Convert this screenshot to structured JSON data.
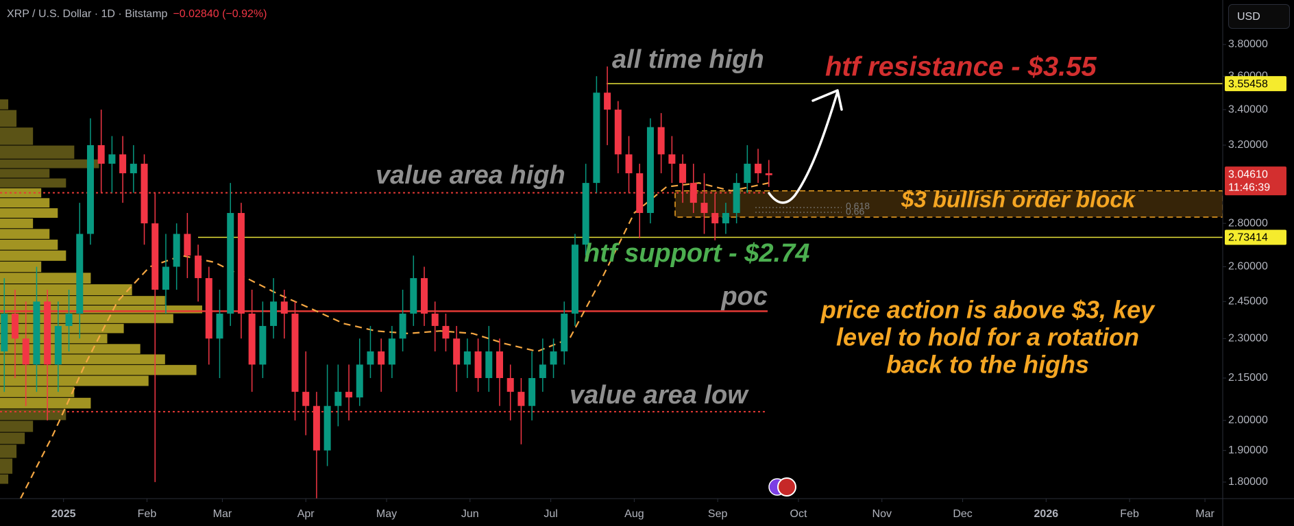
{
  "header": {
    "symbol": "XRP / U.S. Dollar · 1D · Bitstamp",
    "change": "−0.02840 (−0.92%)",
    "currency": "USD"
  },
  "chart_data": {
    "type": "candlestick",
    "log_scale": true,
    "grid": false,
    "xlim": [
      -23.6,
      430.6
    ],
    "ylim": [
      1.75,
      4.1
    ],
    "xticks": [
      {
        "value": 0,
        "label": "2025"
      },
      {
        "value": 31,
        "label": "Feb"
      },
      {
        "value": 59,
        "label": "Mar"
      },
      {
        "value": 90,
        "label": "Apr"
      },
      {
        "value": 120,
        "label": "May"
      },
      {
        "value": 151,
        "label": "Jun"
      },
      {
        "value": 181,
        "label": "Jul"
      },
      {
        "value": 212,
        "label": "Aug"
      },
      {
        "value": 243,
        "label": "Sep"
      },
      {
        "value": 273,
        "label": "Oct"
      },
      {
        "value": 304,
        "label": "Nov"
      },
      {
        "value": 334,
        "label": "Dec"
      },
      {
        "value": 365,
        "label": "2026"
      },
      {
        "value": 396,
        "label": "Feb"
      },
      {
        "value": 424,
        "label": "Mar"
      }
    ],
    "yticks": [
      {
        "value": 3.8,
        "label": "3.80000"
      },
      {
        "value": 3.6,
        "label": "3.60000"
      },
      {
        "value": 3.4,
        "label": "3.40000"
      },
      {
        "value": 3.2,
        "label": "3.20000"
      },
      {
        "value": 2.8,
        "label": "2.80000"
      },
      {
        "value": 2.6,
        "label": "2.60000"
      },
      {
        "value": 2.45,
        "label": "2.45000"
      },
      {
        "value": 2.3,
        "label": "2.30000"
      },
      {
        "value": 2.15,
        "label": "2.15000"
      },
      {
        "value": 2.0,
        "label": "2.00000"
      },
      {
        "value": 1.9,
        "label": "1.90000"
      },
      {
        "value": 1.8,
        "label": "1.80000"
      }
    ],
    "up_color": "#089981",
    "down_color": "#f23645",
    "x": [
      -22,
      -18,
      -14,
      -10,
      -6,
      -2,
      2,
      6,
      10,
      14,
      18,
      22,
      26,
      30,
      34,
      38,
      42,
      46,
      50,
      54,
      58,
      62,
      66,
      70,
      74,
      78,
      82,
      86,
      90,
      94,
      98,
      102,
      106,
      110,
      114,
      118,
      122,
      126,
      130,
      134,
      138,
      142,
      146,
      150,
      154,
      158,
      162,
      166,
      170,
      174,
      178,
      182,
      186,
      190,
      194,
      198,
      202,
      206,
      210,
      214,
      218,
      222,
      226,
      230,
      234,
      238,
      242,
      246,
      250,
      254,
      258,
      262
    ],
    "open": [
      2.25,
      2.4,
      2.3,
      2.2,
      2.45,
      2.2,
      2.35,
      2.4,
      2.75,
      3.2,
      3.1,
      3.15,
      3.05,
      3.1,
      2.8,
      2.5,
      2.6,
      2.75,
      2.65,
      2.55,
      2.3,
      2.4,
      2.85,
      2.4,
      2.2,
      2.35,
      2.45,
      2.4,
      2.1,
      2.05,
      1.9,
      2.05,
      2.1,
      2.08,
      2.2,
      2.25,
      2.2,
      2.3,
      2.4,
      2.55,
      2.4,
      2.35,
      2.3,
      2.2,
      2.25,
      2.15,
      2.25,
      2.15,
      2.1,
      2.05,
      2.15,
      2.2,
      2.25,
      2.4,
      2.7,
      3.0,
      3.5,
      3.4,
      3.15,
      3.05,
      2.85,
      3.3,
      3.15,
      3.1,
      3.0,
      2.9,
      2.85,
      2.8,
      2.85,
      3.0,
      3.1,
      3.05
    ],
    "high": [
      2.55,
      2.5,
      2.45,
      2.6,
      2.5,
      2.45,
      2.5,
      2.9,
      3.35,
      3.4,
      3.25,
      3.25,
      3.2,
      3.15,
      2.95,
      2.75,
      2.8,
      2.85,
      2.7,
      2.6,
      2.5,
      3.0,
      2.9,
      2.5,
      2.45,
      2.55,
      2.5,
      2.45,
      2.25,
      2.1,
      2.2,
      2.2,
      2.2,
      2.3,
      2.35,
      2.3,
      2.35,
      2.5,
      2.65,
      2.6,
      2.45,
      2.4,
      2.35,
      2.3,
      2.3,
      2.35,
      2.3,
      2.2,
      2.15,
      2.25,
      2.3,
      2.3,
      2.45,
      2.75,
      3.1,
      3.6,
      3.66,
      3.45,
      3.25,
      3.1,
      3.35,
      3.38,
      3.25,
      3.15,
      3.1,
      3.05,
      2.95,
      2.9,
      3.05,
      3.2,
      3.18,
      3.12
    ],
    "low": [
      2.1,
      2.15,
      2.05,
      2.1,
      2.0,
      2.1,
      2.25,
      2.3,
      2.7,
      2.95,
      2.95,
      2.9,
      2.95,
      2.7,
      1.8,
      2.4,
      2.5,
      2.55,
      2.45,
      2.2,
      2.15,
      2.35,
      2.3,
      2.1,
      2.15,
      2.3,
      2.3,
      2.0,
      1.95,
      1.75,
      1.85,
      1.98,
      2.0,
      2.05,
      2.15,
      2.1,
      2.15,
      2.25,
      2.35,
      2.35,
      2.25,
      2.25,
      2.1,
      2.15,
      2.1,
      2.1,
      2.05,
      2.0,
      1.92,
      2.0,
      2.1,
      2.15,
      2.2,
      2.35,
      2.65,
      2.95,
      3.2,
      3.05,
      2.95,
      2.73,
      2.8,
      3.05,
      3.0,
      2.9,
      2.85,
      2.75,
      2.72,
      2.75,
      2.8,
      2.95,
      3.0,
      2.98
    ],
    "close": [
      2.4,
      2.3,
      2.2,
      2.45,
      2.2,
      2.35,
      2.4,
      2.75,
      3.2,
      3.1,
      3.15,
      3.05,
      3.1,
      2.8,
      2.5,
      2.6,
      2.75,
      2.65,
      2.55,
      2.3,
      2.4,
      2.85,
      2.4,
      2.2,
      2.35,
      2.45,
      2.4,
      2.1,
      2.05,
      1.9,
      2.05,
      2.1,
      2.08,
      2.2,
      2.25,
      2.2,
      2.3,
      2.4,
      2.55,
      2.4,
      2.35,
      2.3,
      2.2,
      2.25,
      2.15,
      2.25,
      2.15,
      2.1,
      2.05,
      2.15,
      2.2,
      2.25,
      2.4,
      2.7,
      3.0,
      3.5,
      3.4,
      3.15,
      3.05,
      2.85,
      3.3,
      3.15,
      3.1,
      3.0,
      2.9,
      2.85,
      2.8,
      2.85,
      3.0,
      3.1,
      3.05,
      3.04
    ],
    "moving_average": {
      "color": "#f5a742",
      "x": [
        -16,
        -4,
        8,
        20,
        32,
        44,
        56,
        68,
        80,
        92,
        104,
        116,
        128,
        140,
        152,
        164,
        176,
        188,
        200,
        212,
        224,
        236,
        248,
        262
      ],
      "values": [
        1.75,
        1.95,
        2.2,
        2.45,
        2.6,
        2.65,
        2.62,
        2.55,
        2.48,
        2.42,
        2.36,
        2.33,
        2.32,
        2.33,
        2.32,
        2.28,
        2.25,
        2.3,
        2.55,
        2.85,
        2.98,
        3.0,
        2.96,
        3.0
      ]
    },
    "volume_profile": {
      "inside_color": "#d8c52e",
      "outside_color": "#7a6f1e",
      "prices": [
        3.45,
        3.35,
        3.25,
        3.15,
        3.1,
        3.05,
        3.0,
        2.95,
        2.9,
        2.85,
        2.8,
        2.75,
        2.7,
        2.65,
        2.6,
        2.55,
        2.5,
        2.45,
        2.42,
        2.38,
        2.34,
        2.3,
        2.26,
        2.22,
        2.18,
        2.14,
        2.1,
        2.06,
        2.02,
        1.98,
        1.94,
        1.9,
        1.85,
        1.8
      ],
      "values": [
        10,
        20,
        40,
        90,
        120,
        60,
        80,
        50,
        60,
        70,
        40,
        60,
        70,
        80,
        50,
        110,
        160,
        200,
        245,
        210,
        150,
        130,
        170,
        200,
        238,
        180,
        90,
        110,
        80,
        40,
        30,
        20,
        15,
        10
      ]
    },
    "levels": {
      "value_area_high": 2.95,
      "value_area_low": 2.03,
      "poc": 2.41,
      "level_color": "#e53935",
      "line_color": "#e8e23a"
    },
    "order_block": {
      "low": 2.83,
      "high": 2.96,
      "color": "#f5a623"
    },
    "price_tags": [
      {
        "value": 3.55458,
        "color": "#f5eb2d"
      },
      {
        "value": 2.73414,
        "color": "#f5eb2d"
      }
    ],
    "current_price": {
      "value": 3.0461,
      "label": "3.04610",
      "countdown": "11:46:39",
      "color": "#d32f2f"
    },
    "fib_labels": [
      "0.618",
      "0.66"
    ],
    "annotations": [
      {
        "text": "all time high",
        "color": "#8f8f8f"
      },
      {
        "text": "htf resistance - $3.55",
        "color": "#d32f2f"
      },
      {
        "text": "value area high",
        "color": "#8f8f8f"
      },
      {
        "text": "$3 bullish order block",
        "color": "#f5a623"
      },
      {
        "text": "htf support - $2.74",
        "color": "#4caf50"
      },
      {
        "text": "poc",
        "color": "#8f8f8f"
      },
      {
        "text": "price action is above $3, key",
        "color": "#f5a623"
      },
      {
        "text": "level to hold for a rotation",
        "color": "#f5a623"
      },
      {
        "text": "back to the highs",
        "color": "#f5a623"
      },
      {
        "text": "value area low",
        "color": "#8f8f8f"
      }
    ]
  }
}
